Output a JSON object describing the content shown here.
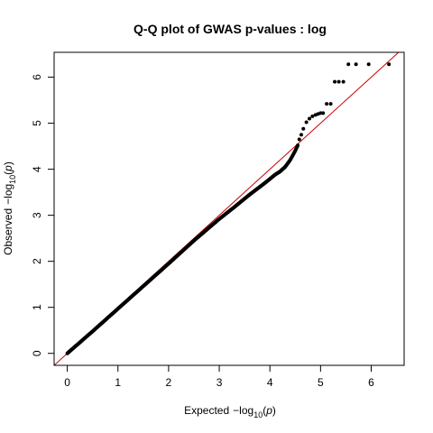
{
  "chart_data": {
    "type": "scatter",
    "title": "Q-Q plot of GWAS p-values : log",
    "xlabel": {
      "text": "Expected",
      "minus": "−",
      "log": "log",
      "base": "10",
      "open": "(",
      "var": "p",
      "close": ")"
    },
    "ylabel": {
      "text": "Observed",
      "minus": "−",
      "log": "log",
      "base": "10",
      "open": "(",
      "var": "p",
      "close": ")"
    },
    "xlim": [
      -0.26,
      6.65
    ],
    "ylim": [
      -0.26,
      6.54
    ],
    "x_ticks": [
      "0",
      "1",
      "2",
      "3",
      "4",
      "5",
      "6"
    ],
    "y_ticks": [
      "0",
      "1",
      "2",
      "3",
      "4",
      "5",
      "6"
    ],
    "grid": false,
    "reference_line": {
      "slope": 1,
      "intercept": 0,
      "color": "#cc0000"
    },
    "point_color": "#000000",
    "trend": {
      "x": [
        0,
        0.5,
        1,
        1.5,
        2,
        2.5,
        3,
        3.3,
        3.6,
        3.9,
        4.1,
        4.2,
        4.3,
        4.4,
        4.5,
        4.55
      ],
      "y": [
        0,
        0.48,
        0.97,
        1.46,
        1.95,
        2.45,
        2.92,
        3.18,
        3.45,
        3.7,
        3.88,
        3.95,
        4.05,
        4.2,
        4.4,
        4.52
      ]
    },
    "points": [
      {
        "x": 4.58,
        "y": 4.65
      },
      {
        "x": 4.62,
        "y": 4.75
      },
      {
        "x": 4.66,
        "y": 4.88
      },
      {
        "x": 4.72,
        "y": 5.02
      },
      {
        "x": 4.78,
        "y": 5.1
      },
      {
        "x": 4.84,
        "y": 5.15
      },
      {
        "x": 4.9,
        "y": 5.18
      },
      {
        "x": 4.95,
        "y": 5.2
      },
      {
        "x": 5.0,
        "y": 5.22
      },
      {
        "x": 5.05,
        "y": 5.22
      },
      {
        "x": 5.12,
        "y": 5.42
      },
      {
        "x": 5.2,
        "y": 5.42
      },
      {
        "x": 5.28,
        "y": 5.9
      },
      {
        "x": 5.36,
        "y": 5.9
      },
      {
        "x": 5.45,
        "y": 5.9
      },
      {
        "x": 5.55,
        "y": 6.28
      },
      {
        "x": 5.7,
        "y": 6.28
      },
      {
        "x": 5.95,
        "y": 6.28
      },
      {
        "x": 6.35,
        "y": 6.28
      }
    ]
  }
}
